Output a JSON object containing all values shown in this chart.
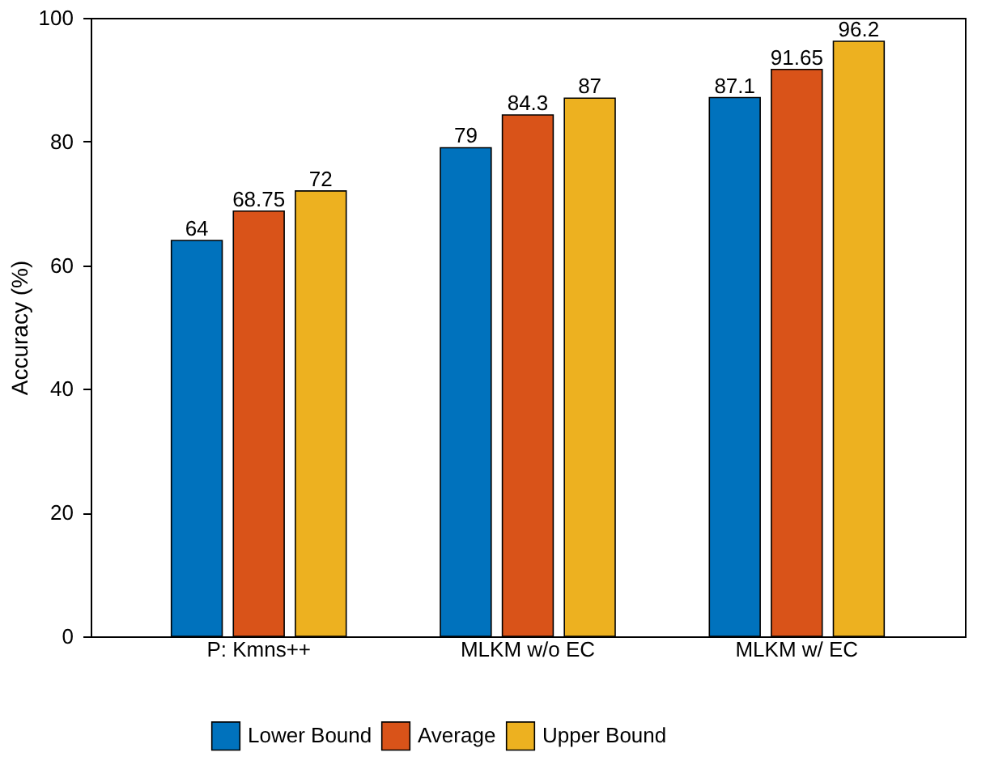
{
  "chart_data": {
    "type": "bar",
    "ylabel": "Accuracy (%)",
    "categories": [
      "P: Kmns++",
      "MLKM w/o EC",
      "MLKM w/ EC"
    ],
    "series": [
      {
        "name": "Lower Bound",
        "color": "#0072bd",
        "values": [
          64,
          79,
          87.1
        ]
      },
      {
        "name": "Average",
        "color": "#d95319",
        "values": [
          68.75,
          84.3,
          91.65
        ]
      },
      {
        "name": "Upper Bound",
        "color": "#edb120",
        "values": [
          72,
          87,
          96.2
        ]
      }
    ],
    "ylim": [
      0,
      100
    ],
    "yticks": [
      0,
      20,
      40,
      60,
      80,
      100
    ],
    "grid": false,
    "legend": "bottom",
    "data_labels": true
  }
}
